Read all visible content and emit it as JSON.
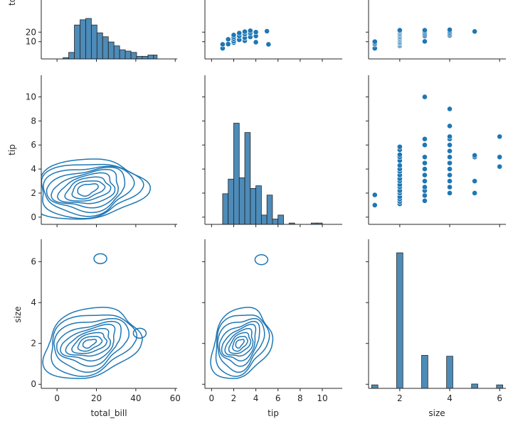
{
  "chart_data": {
    "type": "pairplot",
    "variables": [
      "total_bill",
      "tip",
      "size"
    ],
    "series_color": "#1f77b4",
    "axes": {
      "total_bill": {
        "label": "total_bill",
        "range": [
          -8,
          61
        ],
        "ticks": [
          0,
          20,
          40,
          60
        ],
        "ylabel_visible": "to"
      },
      "tip": {
        "label": "tip",
        "range": [
          -0.6,
          11.8
        ],
        "ticks": [
          0,
          2,
          4,
          6,
          8,
          10
        ]
      },
      "size": {
        "label": "size",
        "range": [
          -0.2,
          7.1
        ],
        "ticks": [
          0,
          2,
          4,
          6
        ],
        "xrange": [
          0.75,
          6.25
        ],
        "xticks": [
          2,
          4,
          6
        ]
      }
    },
    "histograms": {
      "total_bill": {
        "bins": [
          [
            3.07,
            5.94,
            1
          ],
          [
            5.94,
            8.81,
            5
          ],
          [
            8.81,
            11.69,
            26
          ],
          [
            11.69,
            14.56,
            30
          ],
          [
            14.56,
            17.43,
            31
          ],
          [
            17.43,
            20.3,
            26
          ],
          [
            20.3,
            23.17,
            20
          ],
          [
            23.17,
            26.05,
            17
          ],
          [
            26.05,
            28.92,
            13
          ],
          [
            28.92,
            31.79,
            10
          ],
          [
            31.79,
            34.66,
            7
          ],
          [
            34.66,
            37.53,
            6
          ],
          [
            37.53,
            40.41,
            5
          ],
          [
            40.41,
            43.28,
            2
          ],
          [
            43.28,
            46.15,
            2
          ],
          [
            46.15,
            49.02,
            3
          ],
          [
            49.02,
            50.81,
            3
          ]
        ]
      },
      "tip": {
        "bins": [
          [
            1.0,
            1.5,
            23
          ],
          [
            1.5,
            2.0,
            34
          ],
          [
            2.0,
            2.5,
            76
          ],
          [
            2.5,
            3.0,
            35
          ],
          [
            3.0,
            3.5,
            69
          ],
          [
            3.5,
            4.0,
            27
          ],
          [
            4.0,
            4.5,
            29
          ],
          [
            4.5,
            5.0,
            7
          ],
          [
            5.0,
            5.5,
            22
          ],
          [
            5.5,
            6.0,
            4
          ],
          [
            6.0,
            6.5,
            7
          ],
          [
            7.0,
            7.5,
            1
          ],
          [
            9.0,
            9.5,
            1
          ],
          [
            9.5,
            10.0,
            1
          ]
        ]
      },
      "size": {
        "bins": [
          [
            0.875,
            1.125,
            4
          ],
          [
            1.875,
            2.125,
            156
          ],
          [
            2.875,
            3.125,
            38
          ],
          [
            3.875,
            4.125,
            37
          ],
          [
            4.875,
            5.125,
            5
          ],
          [
            5.875,
            6.125,
            4
          ]
        ]
      }
    },
    "scatter": {
      "tip_vs_size": [
        [
          1,
          1.0
        ],
        [
          1,
          1.85
        ],
        [
          2,
          1.1
        ],
        [
          2,
          1.3
        ],
        [
          2,
          1.5
        ],
        [
          2,
          1.7
        ],
        [
          2,
          2.0
        ],
        [
          2,
          2.2
        ],
        [
          2,
          2.5
        ],
        [
          2,
          2.7
        ],
        [
          2,
          3.0
        ],
        [
          2,
          3.2
        ],
        [
          2,
          3.5
        ],
        [
          2,
          3.8
        ],
        [
          2,
          4.0
        ],
        [
          2,
          4.3
        ],
        [
          2,
          4.7
        ],
        [
          2,
          5.0
        ],
        [
          2,
          5.2
        ],
        [
          2,
          5.6
        ],
        [
          2,
          5.85
        ],
        [
          3,
          1.36
        ],
        [
          3,
          1.8
        ],
        [
          3,
          2.2
        ],
        [
          3,
          2.5
        ],
        [
          3,
          3.0
        ],
        [
          3,
          3.5
        ],
        [
          3,
          4.0
        ],
        [
          3,
          4.5
        ],
        [
          3,
          5.0
        ],
        [
          3,
          6.0
        ],
        [
          3,
          6.5
        ],
        [
          3,
          10.0
        ],
        [
          4,
          2.0
        ],
        [
          4,
          2.5
        ],
        [
          4,
          3.0
        ],
        [
          4,
          3.5
        ],
        [
          4,
          4.0
        ],
        [
          4,
          4.5
        ],
        [
          4,
          5.0
        ],
        [
          4,
          5.5
        ],
        [
          4,
          6.0
        ],
        [
          4,
          6.5
        ],
        [
          4,
          6.7
        ],
        [
          4,
          7.58
        ],
        [
          4,
          9.0
        ],
        [
          5,
          2.0
        ],
        [
          5,
          3.0
        ],
        [
          5,
          5.0
        ],
        [
          5,
          5.14
        ],
        [
          6,
          4.2
        ],
        [
          6,
          5.0
        ],
        [
          6,
          6.7
        ]
      ],
      "total_bill_vs_size": [
        [
          1,
          3.07
        ],
        [
          1,
          7.25
        ],
        [
          1,
          8.58
        ],
        [
          1,
          10.07
        ],
        [
          2,
          5.75
        ],
        [
          2,
          7.0
        ],
        [
          2,
          8.0
        ],
        [
          2,
          9.0
        ],
        [
          2,
          10.0
        ],
        [
          2,
          11.0
        ],
        [
          2,
          12.0
        ],
        [
          2,
          13.0
        ],
        [
          2,
          14.0
        ],
        [
          2,
          15.0
        ],
        [
          2,
          16.0
        ],
        [
          2,
          17.0
        ],
        [
          2,
          18.0
        ],
        [
          2,
          19.0
        ],
        [
          2,
          20.0
        ],
        [
          2,
          21.0
        ],
        [
          2,
          22.0
        ],
        [
          3,
          10.3
        ],
        [
          3,
          16.0
        ],
        [
          3,
          17.5
        ],
        [
          3,
          19.0
        ],
        [
          3,
          20.5
        ],
        [
          3,
          22.0
        ],
        [
          4,
          16.5
        ],
        [
          4,
          18.0
        ],
        [
          4,
          19.5
        ],
        [
          4,
          21.0
        ],
        [
          4,
          22.5
        ],
        [
          5,
          20.7
        ]
      ],
      "total_bill_vs_tip": [
        [
          1.0,
          3.07
        ],
        [
          1.0,
          7.25
        ],
        [
          1.5,
          12.5
        ],
        [
          1.5,
          7.5
        ],
        [
          2.0,
          9.0
        ],
        [
          2.0,
          10.5
        ],
        [
          2.0,
          13.0
        ],
        [
          2.0,
          15.0
        ],
        [
          2.0,
          17.0
        ],
        [
          2.5,
          12.0
        ],
        [
          2.5,
          16.0
        ],
        [
          2.5,
          19.0
        ],
        [
          3.0,
          11.0
        ],
        [
          3.0,
          14.0
        ],
        [
          3.0,
          18.0
        ],
        [
          3.0,
          20.5
        ],
        [
          3.5,
          15.0
        ],
        [
          3.5,
          19.0
        ],
        [
          3.5,
          21.5
        ],
        [
          4.0,
          9.5
        ],
        [
          4.0,
          16.0
        ],
        [
          4.0,
          20.0
        ],
        [
          5.0,
          21.0
        ],
        [
          5.14,
          7.25
        ]
      ]
    },
    "kde": {
      "tip_vs_total_bill": {
        "center": [
          15,
          2.3
        ],
        "radius_scale": [
          2.25,
          0.333
        ],
        "levels": [
          [
            2.1,
            0.5,
            1.05
          ],
          [
            3.4,
            0.75,
            0.95
          ],
          [
            4.7,
            1.0,
            0.85
          ],
          [
            6.0,
            1.25,
            0.75
          ],
          [
            7.3,
            1.5,
            0.65
          ],
          [
            8.6,
            1.75,
            0.55
          ],
          [
            9.9,
            2.0,
            0.45
          ],
          [
            11.2,
            2.25,
            0.4
          ],
          [
            12.5,
            2.5,
            0.35
          ]
        ]
      },
      "size_vs_total_bill": {
        "center": [
          16,
          2.0
        ],
        "radius_scale": [
          2.25,
          0.2
        ],
        "levels": [
          [
            1.3,
            0.35,
            1.2
          ],
          [
            2.4,
            0.6,
            1.1
          ],
          [
            3.5,
            0.85,
            1.0
          ],
          [
            4.6,
            1.1,
            0.9
          ],
          [
            5.7,
            1.4,
            0.8
          ],
          [
            6.8,
            1.7,
            0.7
          ],
          [
            8.0,
            2.1,
            0.6
          ],
          [
            9.2,
            2.5,
            0.55
          ],
          [
            10.4,
            2.9,
            0.5
          ]
        ],
        "islands": [
          [
            22,
            6.15
          ],
          [
            42,
            2.5
          ]
        ]
      },
      "size_vs_tip": {
        "center": [
          2.5,
          2.0
        ],
        "radius_scale": [
          0.25,
          0.2
        ],
        "levels": [
          [
            1.3,
            0.35,
            1.2
          ],
          [
            2.4,
            0.6,
            1.1
          ],
          [
            3.5,
            0.85,
            1.0
          ],
          [
            4.6,
            1.1,
            0.9
          ],
          [
            5.7,
            1.4,
            0.8
          ],
          [
            6.8,
            1.7,
            0.7
          ],
          [
            8.0,
            2.1,
            0.6
          ],
          [
            9.2,
            2.5,
            0.55
          ],
          [
            10.4,
            2.9,
            0.5
          ]
        ],
        "islands": [
          [
            4.5,
            6.1
          ]
        ]
      }
    }
  }
}
